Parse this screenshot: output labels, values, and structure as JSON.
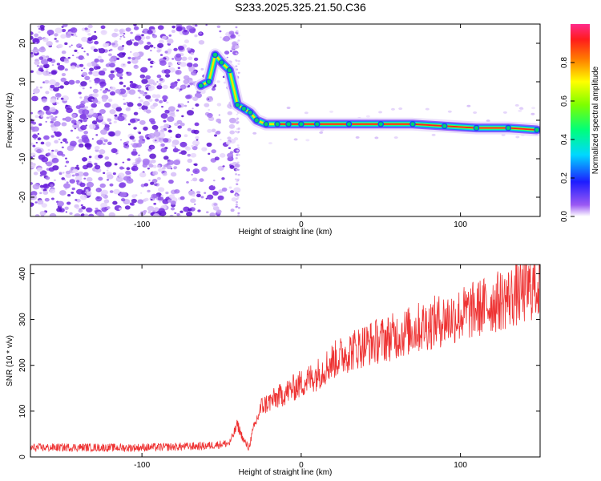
{
  "title": "S233.2025.325.21.50.C36",
  "colors": {
    "signal": "#ee3333",
    "frame": "#000000",
    "scatter": "#8a3cf0"
  },
  "chart_data": [
    {
      "type": "heatmap",
      "title": "S233.2025.325.21.50.C36",
      "xlabel": "Height of straight line (km)",
      "ylabel": "Frequency (Hz)",
      "xlim": [
        -170,
        150
      ],
      "ylim": [
        -25,
        25
      ],
      "xticks": [
        -100,
        0,
        100
      ],
      "yticks": [
        -20,
        -10,
        0,
        10,
        20
      ],
      "track": {
        "x": [
          -63,
          -58,
          -54,
          -50,
          -45,
          -40,
          -36,
          -32,
          -28,
          -22,
          -15,
          -8,
          0,
          10,
          30,
          50,
          70,
          90,
          110,
          130,
          148
        ],
        "y": [
          9,
          10,
          17,
          15,
          13,
          4,
          3,
          2,
          0,
          -1,
          -1,
          -1,
          -1,
          -1,
          -1,
          -1,
          -1,
          -1.5,
          -2,
          -2,
          -2.5
        ]
      },
      "colorbar": {
        "label": "Normalized spectral amplitude",
        "range": [
          0,
          1
        ],
        "ticks": [
          "0.0",
          "0.2",
          "0.4",
          "0.6",
          "0.8"
        ]
      }
    },
    {
      "type": "line",
      "xlabel": "Height of straight line (km)",
      "ylabel": "SNR (10 * v/v)",
      "xlim": [
        -170,
        150
      ],
      "ylim": [
        0,
        420
      ],
      "xticks": [
        -100,
        0,
        100
      ],
      "yticks": [
        0,
        100,
        200,
        300,
        400
      ],
      "series": [
        {
          "name": "SNR",
          "x": [
            -170,
            -140,
            -110,
            -80,
            -60,
            -45,
            -40,
            -36,
            -33,
            -30,
            -25,
            -20,
            -10,
            0,
            10,
            20,
            30,
            40,
            60,
            80,
            100,
            120,
            140,
            150
          ],
          "y": [
            20,
            21,
            20,
            22,
            24,
            30,
            70,
            35,
            20,
            60,
            110,
            120,
            140,
            160,
            180,
            210,
            230,
            245,
            265,
            290,
            310,
            335,
            360,
            380
          ]
        }
      ]
    }
  ]
}
